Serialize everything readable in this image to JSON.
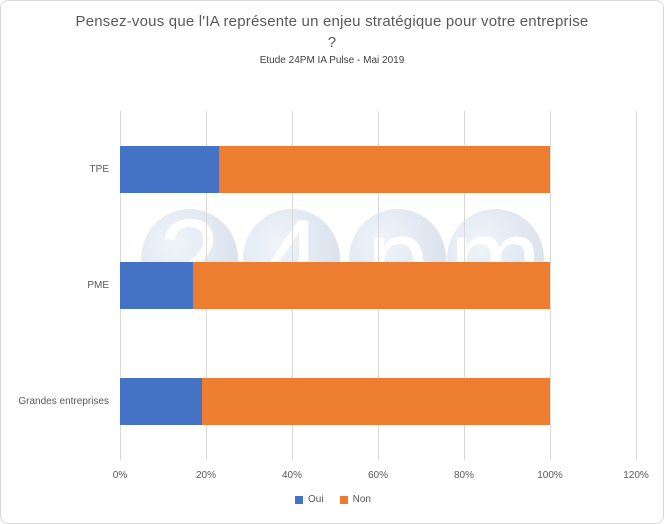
{
  "title": "Pensez-vous que l'IA représente un enjeu stratégique pour votre entreprise ?",
  "subtitle": "Etude 24PM IA Pulse - Mai 2019",
  "watermark": {
    "name": "24pm-logo-watermark",
    "letters": [
      "2",
      "4",
      "p",
      "m"
    ]
  },
  "colors": {
    "oui": "#4472C4",
    "non": "#ED7D31",
    "gridline": "#D9D9D9",
    "text": "#595959"
  },
  "chart_data": {
    "type": "bar",
    "orientation": "horizontal",
    "stacked": true,
    "title": "Pensez-vous que l'IA représente un enjeu stratégique pour votre entreprise ?",
    "subtitle": "Etude 24PM IA Pulse - Mai 2019",
    "categories": [
      "TPE",
      "PME",
      "Grandes entreprises"
    ],
    "series": [
      {
        "name": "Oui",
        "color": "#4472C4",
        "values": [
          23,
          17,
          19
        ]
      },
      {
        "name": "Non",
        "color": "#ED7D31",
        "values": [
          77,
          83,
          81
        ]
      }
    ],
    "xlabel": "",
    "ylabel": "",
    "xlim": [
      0,
      120
    ],
    "x_ticks": [
      "0%",
      "20%",
      "40%",
      "60%",
      "80%",
      "100%",
      "120%"
    ],
    "grid": "vertical",
    "legend_position": "bottom"
  }
}
